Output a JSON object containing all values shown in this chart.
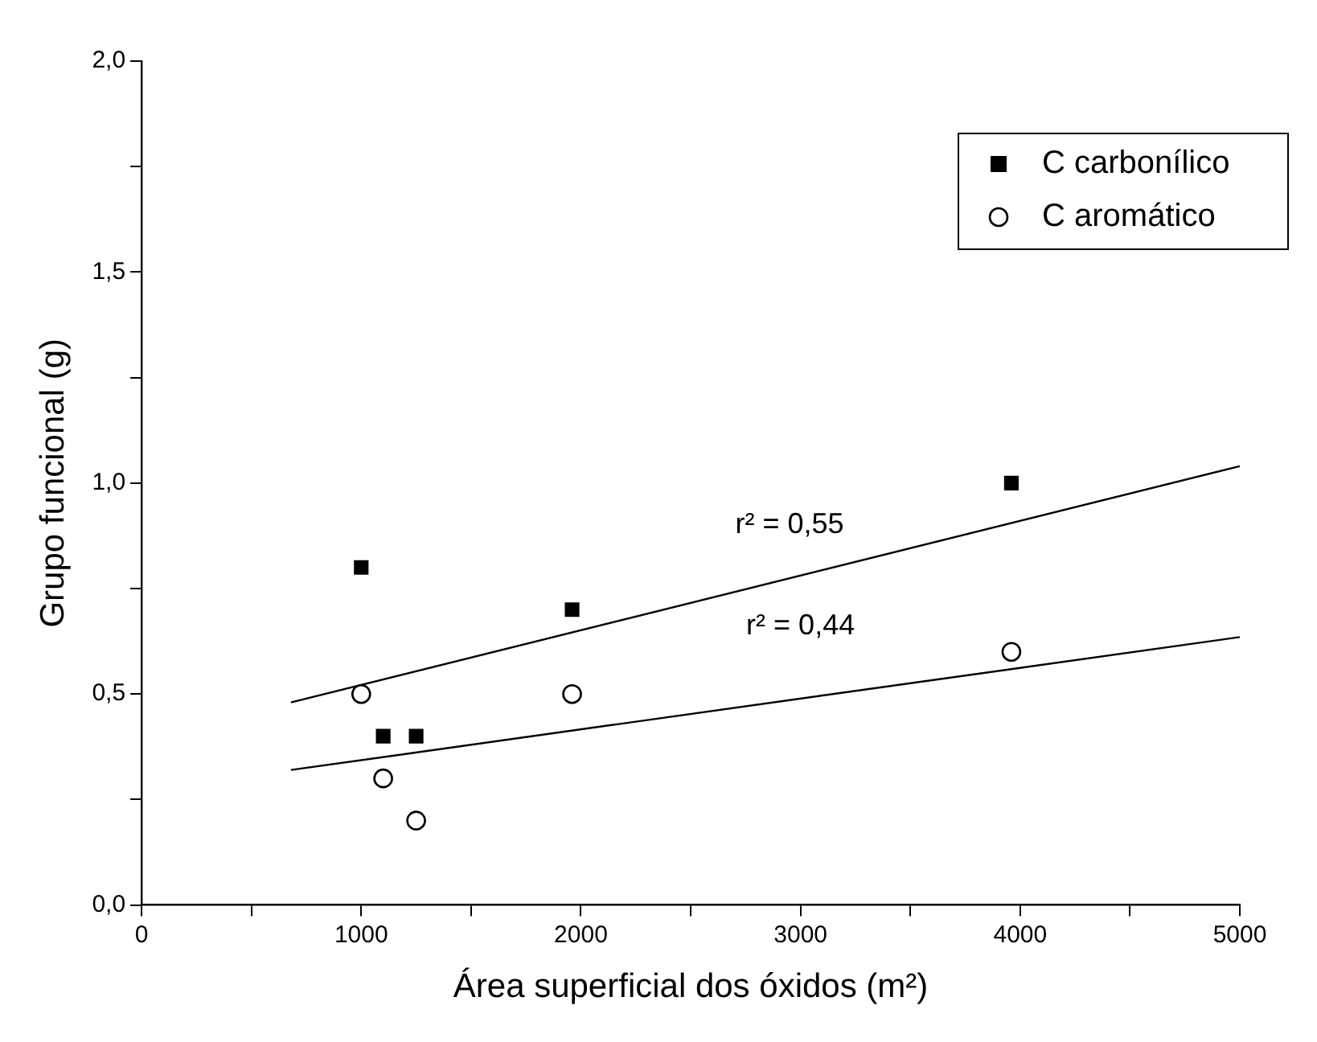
{
  "chart_data": {
    "type": "scatter",
    "xlabel": "Área superficial dos óxidos (m²)",
    "ylabel": "Grupo funcional (g)",
    "xlim": [
      0,
      5000
    ],
    "ylim": [
      0,
      2
    ],
    "xticks": [
      0,
      {
        "value": 500,
        "label": null
      },
      1000,
      {
        "value": 1500,
        "label": null
      },
      2000,
      {
        "value": 2500,
        "label": null
      },
      3000,
      {
        "value": 3500,
        "label": null
      },
      4000,
      {
        "value": 4500,
        "label": null
      },
      5000
    ],
    "yticks": [
      {
        "value": 0,
        "label": "0,0"
      },
      {
        "value": 0.25,
        "label": null
      },
      {
        "value": 0.5,
        "label": "0,5"
      },
      {
        "value": 0.75,
        "label": null
      },
      {
        "value": 1,
        "label": "1,0"
      },
      {
        "value": 1.25,
        "label": null
      },
      {
        "value": 1.5,
        "label": "1,5"
      },
      {
        "value": 1.75,
        "label": null
      },
      {
        "value": 2,
        "label": "2,0"
      }
    ],
    "grid": false,
    "legend": "top right",
    "series": [
      {
        "name": "C carbonílico",
        "color": "#000000",
        "marker": "square",
        "x": [
          1000,
          1100,
          1250,
          1960,
          3960
        ],
        "values": [
          0.8,
          0.4,
          0.4,
          0.7,
          1.0
        ]
      },
      {
        "name": "C aromático",
        "color": "#000000",
        "marker": "circle",
        "x": [
          1000,
          1100,
          1250,
          1960,
          3960
        ],
        "values": [
          0.5,
          0.3,
          0.2,
          0.5,
          0.6
        ]
      },
      {
        "type": "line",
        "color": "#000000",
        "marker": "none",
        "x": [
          680,
          5000
        ],
        "values": [
          0.48,
          1.04
        ]
      },
      {
        "type": "line",
        "color": "#000000",
        "marker": "none",
        "x": [
          680,
          5000
        ],
        "values": [
          0.32,
          0.635
        ]
      }
    ],
    "annotations": [
      "r² = 0,55",
      "r² = 0,44"
    ]
  }
}
